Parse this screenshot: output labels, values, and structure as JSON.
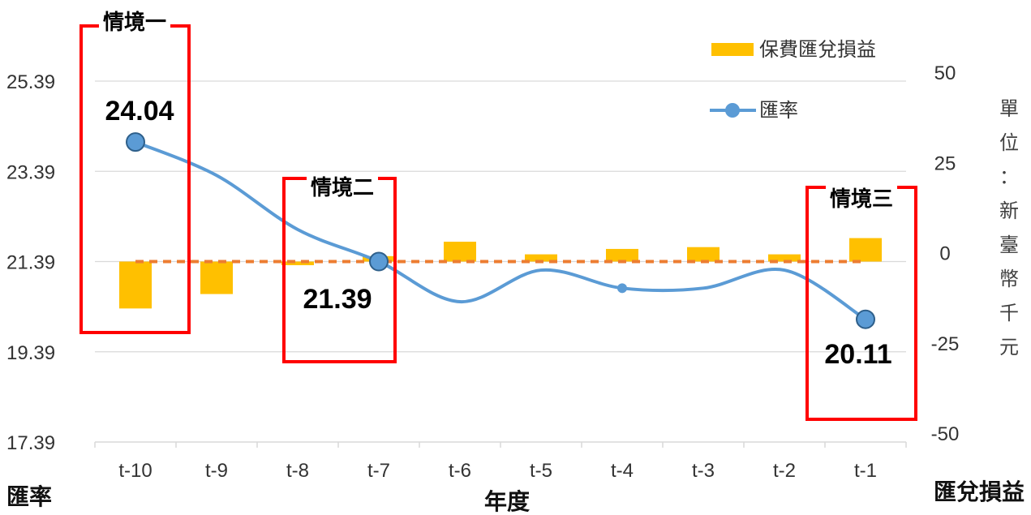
{
  "chart_data": {
    "type": "bar+line",
    "categories": [
      "t-10",
      "t-9",
      "t-8",
      "t-7",
      "t-6",
      "t-5",
      "t-4",
      "t-3",
      "t-2",
      "t-1"
    ],
    "xlabel": "年度",
    "left_axis": {
      "title": "匯率",
      "range": [
        17.39,
        25.39
      ],
      "ticks": [
        "17.39",
        "19.39",
        "21.39",
        "23.39",
        "25.39"
      ]
    },
    "right_axis": {
      "title": "匯兌損益",
      "range": [
        -50,
        50
      ],
      "ticks": [
        "-50",
        "-25",
        "0",
        "25",
        "50"
      ],
      "unit": [
        "單",
        "位",
        "：",
        "新",
        "臺",
        "幣",
        "千",
        "元"
      ]
    },
    "series": [
      {
        "name": "保費匯兌損益",
        "type": "bar",
        "axis": "right",
        "color": "#FFC000",
        "values": [
          -13,
          -9,
          -1,
          1.5,
          5.5,
          2,
          3.5,
          4,
          2,
          6.5
        ]
      },
      {
        "name": "匯率",
        "type": "line",
        "axis": "left",
        "color": "#5B9BD5",
        "values": [
          24.04,
          23.3,
          22.1,
          21.39,
          20.5,
          21.2,
          20.8,
          20.8,
          21.2,
          20.11
        ]
      }
    ],
    "reference_line": {
      "axis": "left",
      "value": 21.39,
      "color": "#ED7D31",
      "style": "dashed"
    },
    "legend_placement": "top-right",
    "grid": true,
    "annotations": [
      {
        "label": "情境一",
        "value": "24.04",
        "category": "t-10"
      },
      {
        "label": "情境二",
        "value": "21.39",
        "category": "t-7"
      },
      {
        "label": "情境三",
        "value": "20.11",
        "category": "t-1"
      }
    ]
  }
}
